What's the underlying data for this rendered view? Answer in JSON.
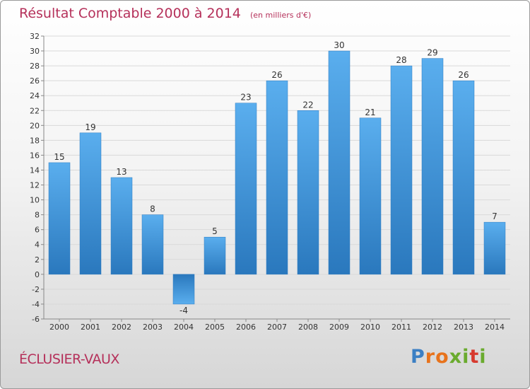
{
  "chart_data": {
    "type": "bar",
    "title": "Résultat Comptable 2000 à 2014",
    "subtitle": "(en milliers d'€)",
    "categories": [
      "2000",
      "2001",
      "2002",
      "2003",
      "2004",
      "2005",
      "2006",
      "2007",
      "2008",
      "2009",
      "2010",
      "2011",
      "2012",
      "2013",
      "2014"
    ],
    "values": [
      15,
      19,
      13,
      8,
      -4,
      5,
      23,
      26,
      22,
      30,
      21,
      28,
      29,
      26,
      7
    ],
    "ylim": [
      -6,
      32
    ],
    "yticks": [
      -6,
      -4,
      -2,
      0,
      2,
      4,
      6,
      8,
      10,
      12,
      14,
      16,
      18,
      20,
      22,
      24,
      26,
      28,
      30,
      32
    ],
    "xlabel": "",
    "ylabel": "",
    "grid": true,
    "bar_color": "#3a8fd6"
  },
  "commune": "ÉCLUSIER-VAUX",
  "logo": {
    "text": "Proxiti",
    "letters": [
      "P",
      "r",
      "o",
      "x",
      "i",
      "t",
      "i"
    ],
    "colors": [
      "#3b7fc4",
      "#e8731c",
      "#e8731c",
      "#6aab2e",
      "#6aab2e",
      "#d73a2f",
      "#6aab2e"
    ]
  }
}
